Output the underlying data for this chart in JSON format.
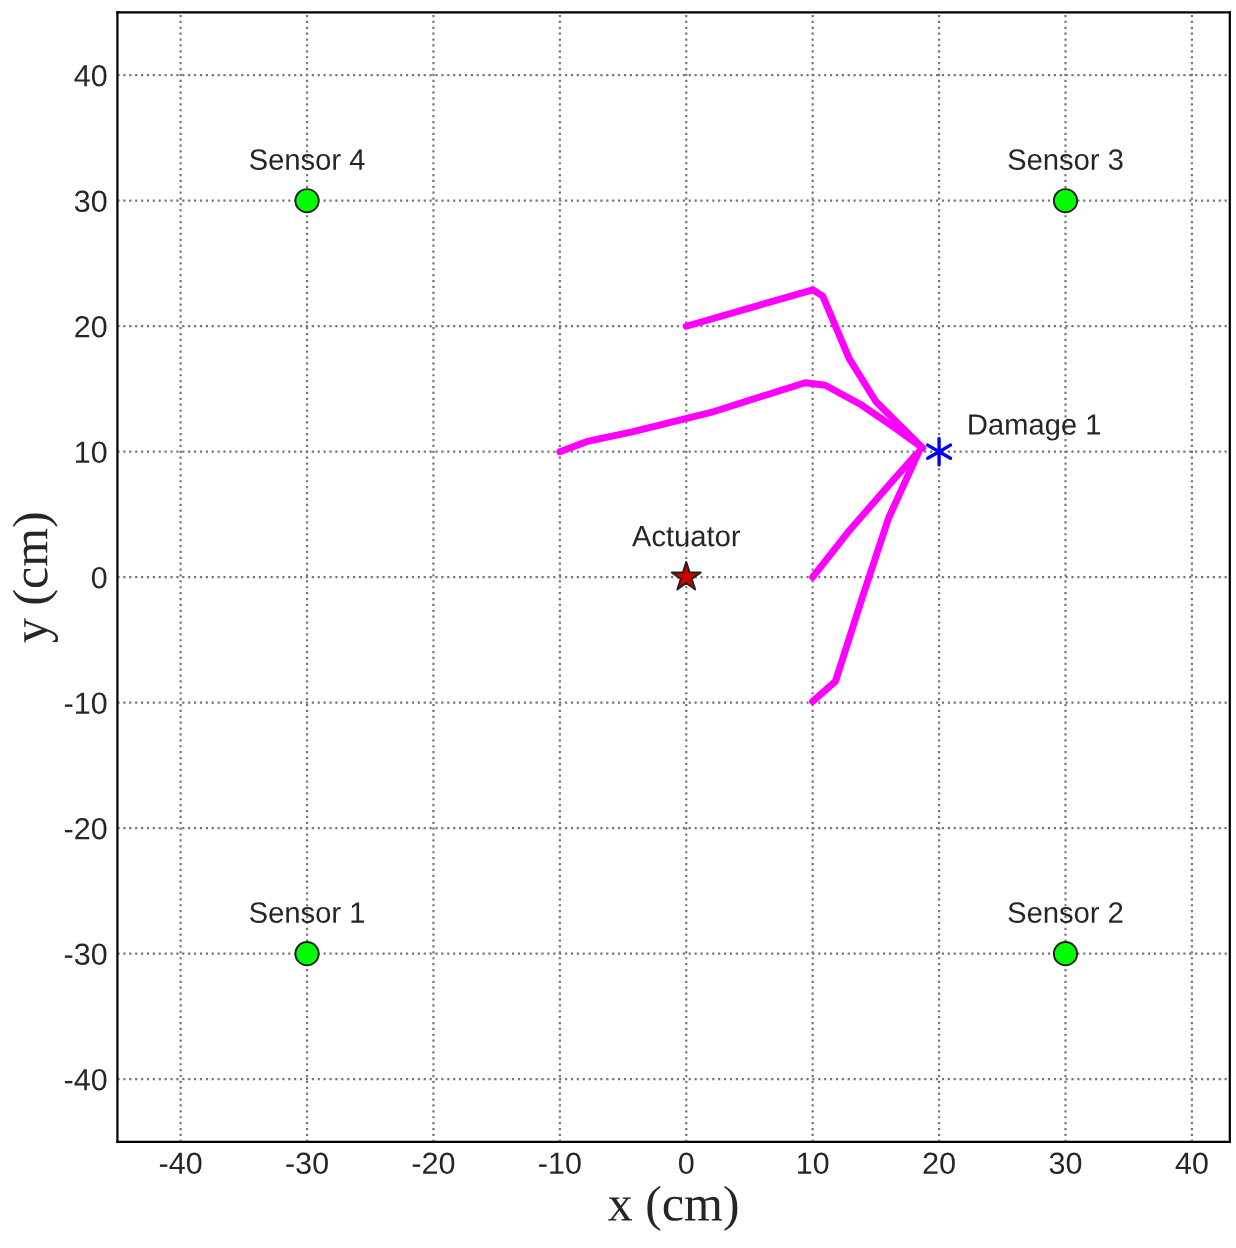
{
  "chart_data": {
    "type": "line",
    "xlabel": "x (cm)",
    "ylabel": "y (cm)",
    "xlim": [
      -45,
      43
    ],
    "ylim": [
      -45,
      45
    ],
    "xticks": [
      -40,
      -30,
      -20,
      -10,
      0,
      10,
      20,
      30,
      40
    ],
    "yticks": [
      -40,
      -30,
      -20,
      -10,
      0,
      10,
      20,
      30,
      40
    ],
    "grid": true,
    "line_style": "solid",
    "series": [
      {
        "color": "#ff00ff",
        "marker": "none",
        "x": [
          0,
          10,
          10.8,
          12.9,
          15,
          18.7
        ],
        "values": [
          20,
          22.9,
          22.4,
          17.4,
          14,
          10.3
        ]
      },
      {
        "color": "#ff00ff",
        "marker": "none",
        "x": [
          -10,
          -7.9,
          -4.2,
          2.2,
          9.4,
          11,
          13.9,
          16.5,
          18.7
        ],
        "values": [
          10,
          10.8,
          11.6,
          13.2,
          15.5,
          15.3,
          13.7,
          11.9,
          10.3
        ]
      },
      {
        "color": "#ff00ff",
        "marker": "none",
        "x": [
          10,
          12.8,
          16,
          18.1
        ],
        "values": [
          0,
          3.6,
          7.3,
          9.7
        ]
      },
      {
        "color": "#ff00ff",
        "marker": "none",
        "x": [
          10,
          11.8,
          13.9,
          16,
          18.4
        ],
        "values": [
          -9.9,
          -8.3,
          -1.7,
          4.7,
          10
        ]
      },
      {
        "type": "scatter",
        "color": "#00ff00",
        "marker": "circle",
        "x": [
          -30,
          30,
          30,
          -30
        ],
        "values": [
          -30,
          -30,
          30,
          30
        ]
      },
      {
        "type": "scatter",
        "color": "#cc0000",
        "marker": "star",
        "x": [
          0
        ],
        "values": [
          0
        ]
      },
      {
        "type": "scatter",
        "color": "#0000ff",
        "marker": "cross",
        "x": [
          20
        ],
        "values": [
          10
        ]
      }
    ],
    "annotations": [
      {
        "text": "Sensor 1",
        "x": -30,
        "y": -30
      },
      {
        "text": "Sensor 2",
        "x": 30,
        "y": -30
      },
      {
        "text": "Sensor 3",
        "x": 30,
        "y": 30
      },
      {
        "text": "Sensor 4",
        "x": -30,
        "y": 30
      },
      {
        "text": "Actuator",
        "x": 0,
        "y": 0
      },
      {
        "text": "Damage 1",
        "x": 20,
        "y": 10
      }
    ]
  }
}
